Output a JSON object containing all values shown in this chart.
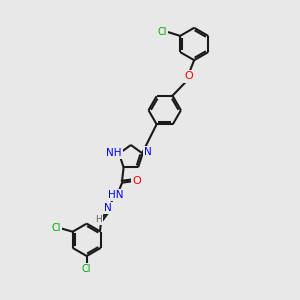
{
  "bg_color": "#e8e8e8",
  "bond_color": "#1a1a1a",
  "N_color": "#0000ff",
  "O_color": "#ff0000",
  "Cl_color": "#00aa00",
  "H_color": "#606060",
  "bond_width": 1.5,
  "font_size": 7.5,
  "figsize": [
    3.0,
    3.0
  ],
  "dpi": 100,
  "xlim": [
    0,
    10
  ],
  "ylim": [
    0,
    10
  ]
}
